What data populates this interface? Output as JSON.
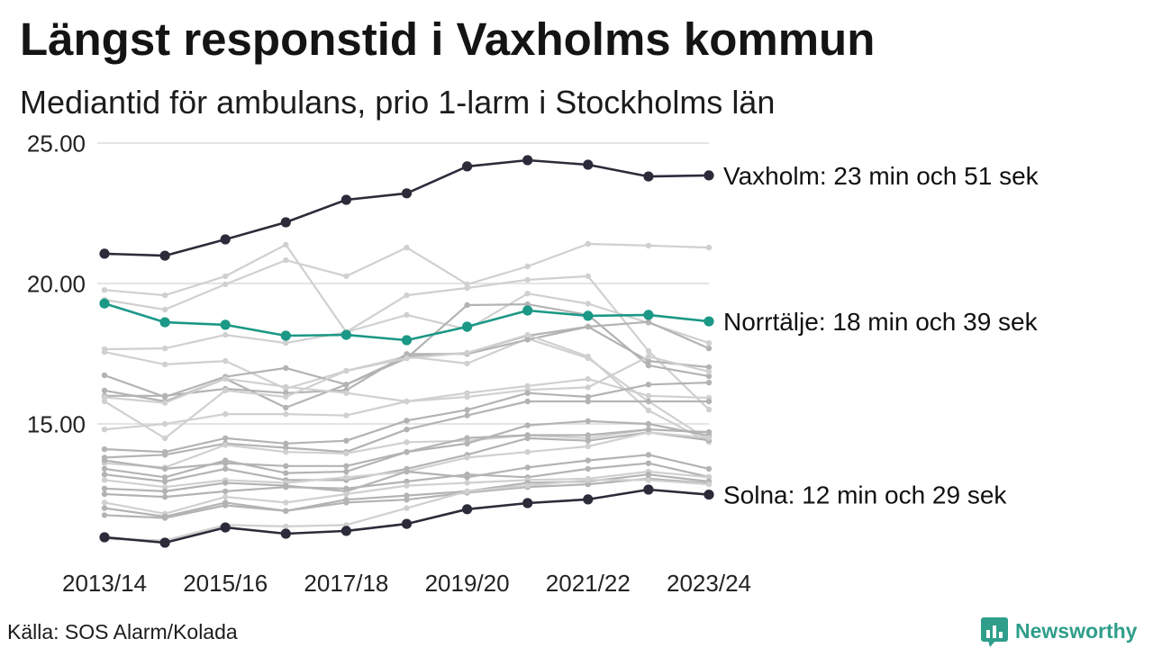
{
  "source": "Källa: SOS Alarm/Kolada",
  "brand": {
    "name": "Newsworthy",
    "icon": "bar-chart-speech-bubble-icon",
    "color": "#2f9e8b"
  },
  "chart_data": {
    "type": "line",
    "title": "Längst responstid i Vaxholms kommun",
    "subtitle": "Mediantid för ambulans, prio 1-larm i Stockholms län",
    "x_tick_labels": [
      "2013/14",
      "2015/16",
      "2017/18",
      "2019/20",
      "2021/22",
      "2023/24"
    ],
    "y_tick_labels": [
      "15.00",
      "20.00",
      "25.00"
    ],
    "ylim": [
      10.5,
      25
    ],
    "grid": true,
    "series": [
      {
        "color": "#d0d0d0",
        "values": [
          19.42,
          19.07,
          19.97,
          20.83,
          20.26,
          21.28,
          19.97,
          20.61,
          21.41,
          21.35,
          21.28
        ]
      },
      {
        "color": "#d0d0d0",
        "values": [
          19.77,
          19.58,
          20.26,
          21.38,
          18.27,
          19.58,
          19.84,
          20.13,
          20.26,
          17.6,
          15.51
        ]
      },
      {
        "color": "#d0d0d0",
        "values": [
          17.66,
          17.69,
          18.17,
          17.88,
          18.27,
          18.88,
          18.37,
          19.64,
          19.28,
          18.6,
          17.88
        ]
      },
      {
        "color": "#d0d0d0",
        "values": [
          17.56,
          17.12,
          17.24,
          16.25,
          16.89,
          17.4,
          17.15,
          18.04,
          17.34,
          15.8,
          14.42
        ]
      },
      {
        "color": "#b3b3b3",
        "values": [
          16.73,
          15.96,
          16.68,
          16.99,
          16.4,
          17.4,
          17.53,
          18.14,
          18.46,
          18.63,
          17.69
        ]
      },
      {
        "color": "#b3b3b3",
        "values": [
          16.19,
          15.8,
          16.61,
          15.58,
          16.4,
          17.34,
          19.23,
          19.26,
          18.88,
          17.08,
          16.7
        ]
      },
      {
        "color": "#b3b3b3",
        "values": [
          16.0,
          16.0,
          16.25,
          16.1,
          16.2,
          17.49,
          17.49,
          18.0,
          18.46,
          17.24,
          17.02
        ]
      },
      {
        "color": "#d0d0d0",
        "values": [
          15.8,
          14.49,
          16.19,
          15.96,
          16.89,
          17.34,
          17.53,
          18.17,
          17.4,
          15.48,
          14.36
        ]
      },
      {
        "color": "#d0d0d0",
        "values": [
          14.8,
          15.0,
          15.35,
          15.35,
          15.3,
          15.8,
          16.1,
          16.35,
          16.6,
          16.0,
          15.93
        ]
      },
      {
        "color": "#d0d0d0",
        "values": [
          15.95,
          15.75,
          16.61,
          16.32,
          16.1,
          15.8,
          15.96,
          16.21,
          16.3,
          17.4,
          16.86
        ]
      },
      {
        "color": "#b3b3b3",
        "values": [
          14.1,
          14.0,
          14.49,
          14.3,
          14.4,
          15.12,
          15.5,
          16.1,
          15.96,
          16.4,
          16.47
        ]
      },
      {
        "color": "#b3b3b3",
        "values": [
          13.8,
          13.9,
          14.3,
          14.15,
          14.0,
          14.8,
          15.3,
          15.8,
          15.8,
          15.8,
          15.8
        ]
      },
      {
        "color": "#d0d0d0",
        "values": [
          13.6,
          13.45,
          14.25,
          14.0,
          13.95,
          14.35,
          14.4,
          14.6,
          14.49,
          14.8,
          14.71
        ]
      },
      {
        "color": "#b3b3b3",
        "values": [
          13.4,
          13.1,
          13.7,
          13.25,
          13.3,
          14.0,
          14.3,
          14.95,
          15.1,
          15.0,
          14.58
        ]
      },
      {
        "color": "#b3b3b3",
        "values": [
          13.2,
          12.95,
          13.4,
          13.0,
          13.0,
          13.4,
          13.9,
          14.49,
          14.4,
          14.7,
          14.42
        ]
      },
      {
        "color": "#d0d0d0",
        "values": [
          13.0,
          12.75,
          13.0,
          12.9,
          13.1,
          13.3,
          13.8,
          14.0,
          14.2,
          14.7,
          14.5
        ]
      },
      {
        "color": "#b3b3b3",
        "values": [
          12.7,
          12.6,
          12.9,
          12.8,
          12.6,
          13.3,
          13.1,
          13.45,
          13.7,
          13.9,
          13.4
        ]
      },
      {
        "color": "#b3b3b3",
        "values": [
          12.5,
          12.4,
          12.6,
          12.75,
          12.7,
          12.95,
          13.2,
          13.1,
          13.4,
          13.6,
          13.11
        ]
      },
      {
        "color": "#d0d0d0",
        "values": [
          12.2,
          11.8,
          12.4,
          12.2,
          12.5,
          12.8,
          12.9,
          13.0,
          13.05,
          13.3,
          13.1
        ]
      },
      {
        "color": "#b3b3b3",
        "values": [
          12.0,
          11.7,
          12.2,
          11.9,
          12.3,
          12.45,
          12.6,
          12.9,
          12.95,
          13.2,
          12.95
        ]
      },
      {
        "color": "#b3b3b3",
        "values": [
          11.75,
          11.65,
          12.1,
          11.9,
          12.2,
          12.3,
          12.55,
          12.75,
          12.85,
          13.05,
          12.88
        ]
      },
      {
        "color": "#d0d0d0",
        "values": [
          10.9,
          10.85,
          11.4,
          11.35,
          11.4,
          12.0,
          12.6,
          12.8,
          13.0,
          13.0,
          12.85
        ]
      },
      {
        "color": "#b3b3b3",
        "values": [
          13.7,
          13.4,
          13.6,
          13.5,
          13.5,
          14.0,
          14.5,
          14.6,
          14.6,
          14.8,
          14.7
        ]
      },
      {
        "name": "Norrtälje",
        "label_suffix": ": 18 min och 39 sek",
        "color": "#1b9886",
        "values": [
          19.29,
          18.62,
          18.53,
          18.14,
          18.17,
          17.98,
          18.46,
          19.04,
          18.85,
          18.88,
          18.65
        ]
      },
      {
        "name": "Solna",
        "label_suffix": ": 12 min och 29 sek",
        "color": "#2c2b3a",
        "values": [
          10.96,
          10.77,
          11.31,
          11.09,
          11.19,
          11.44,
          11.96,
          12.18,
          12.31,
          12.66,
          12.48
        ]
      },
      {
        "name": "Vaxholm",
        "label_suffix": ": 23 min och 51 sek",
        "color": "#2c2b3a",
        "values": [
          21.06,
          20.99,
          21.57,
          22.18,
          22.98,
          23.21,
          24.17,
          24.39,
          24.23,
          23.81,
          23.85
        ]
      }
    ]
  }
}
